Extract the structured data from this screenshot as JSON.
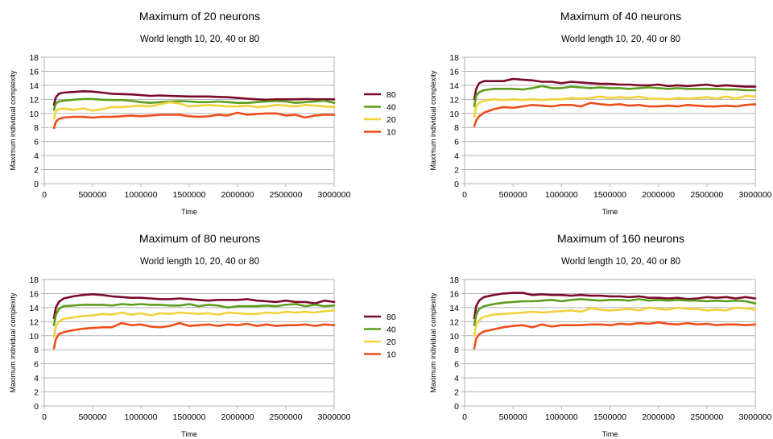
{
  "chart_data": [
    {
      "type": "line",
      "title": "Maximum of 20 neurons",
      "subtitle": "World length 10, 20, 40 or 80",
      "xlabel": "Time",
      "ylabel": "Maximum individual complexity",
      "xlim": [
        0,
        3000000
      ],
      "ylim": [
        0,
        18
      ],
      "xticks": [
        "0",
        "500000",
        "1000000",
        "1500000",
        "2000000",
        "2500000",
        "3000000"
      ],
      "yticks": [
        "0",
        "2",
        "4",
        "6",
        "8",
        "10",
        "12",
        "14",
        "16",
        "18"
      ],
      "grid": true,
      "legend_placement": "right",
      "x": [
        100000,
        120000,
        150000,
        200000,
        300000,
        400000,
        500000,
        600000,
        700000,
        800000,
        900000,
        1000000,
        1100000,
        1200000,
        1300000,
        1400000,
        1500000,
        1600000,
        1700000,
        1800000,
        1900000,
        2000000,
        2100000,
        2200000,
        2300000,
        2400000,
        2500000,
        2600000,
        2700000,
        2800000,
        2900000,
        3000000
      ],
      "series": [
        {
          "name": "80",
          "color": "#7b0a2a",
          "values": [
            11.2,
            12.3,
            12.8,
            12.95,
            13.05,
            13.15,
            13.1,
            12.95,
            12.8,
            12.75,
            12.7,
            12.6,
            12.5,
            12.55,
            12.5,
            12.45,
            12.4,
            12.4,
            12.4,
            12.35,
            12.3,
            12.2,
            12.1,
            12.0,
            11.95,
            12.0,
            12.0,
            12.0,
            12.05,
            12.0,
            12.0,
            12.0
          ]
        },
        {
          "name": "40",
          "color": "#5c9e1f",
          "values": [
            10.5,
            11.4,
            11.7,
            11.8,
            11.95,
            12.05,
            12.05,
            11.95,
            11.9,
            11.9,
            11.8,
            11.6,
            11.5,
            11.6,
            11.7,
            11.75,
            11.7,
            11.6,
            11.6,
            11.7,
            11.6,
            11.5,
            11.5,
            11.6,
            11.7,
            11.75,
            11.7,
            11.5,
            11.6,
            11.7,
            11.8,
            11.5
          ]
        },
        {
          "name": "20",
          "color": "#f2d13a",
          "values": [
            9.3,
            10.3,
            10.6,
            10.7,
            10.5,
            10.7,
            10.4,
            10.6,
            10.9,
            10.9,
            11.0,
            11.1,
            11.0,
            11.3,
            11.6,
            11.4,
            11.0,
            11.1,
            11.2,
            11.1,
            11.0,
            11.0,
            11.1,
            10.9,
            11.0,
            11.2,
            11.1,
            11.0,
            11.2,
            11.1,
            11.0,
            10.9
          ]
        },
        {
          "name": "10",
          "color": "#ee4d1c",
          "values": [
            7.9,
            8.8,
            9.2,
            9.4,
            9.5,
            9.5,
            9.4,
            9.5,
            9.5,
            9.6,
            9.7,
            9.6,
            9.7,
            9.8,
            9.8,
            9.8,
            9.6,
            9.5,
            9.6,
            9.8,
            9.7,
            10.1,
            9.8,
            9.9,
            10.0,
            10.0,
            9.7,
            9.8,
            9.4,
            9.7,
            9.8,
            9.8
          ]
        }
      ]
    },
    {
      "type": "line",
      "title": "Maximum of 40 neurons",
      "subtitle": "World length 10, 20, 40 or 80",
      "xlabel": "Time",
      "ylabel": "Maximum individual complexity",
      "xlim": [
        0,
        3000000
      ],
      "ylim": [
        0,
        18
      ],
      "xticks": [
        "0",
        "500000",
        "1000000",
        "1500000",
        "2000000",
        "2500000",
        "3000000"
      ],
      "yticks": [
        "0",
        "2",
        "4",
        "6",
        "8",
        "10",
        "12",
        "14",
        "16",
        "18"
      ],
      "grid": true,
      "x": [
        100000,
        120000,
        150000,
        200000,
        300000,
        400000,
        500000,
        600000,
        700000,
        800000,
        900000,
        1000000,
        1100000,
        1200000,
        1300000,
        1400000,
        1500000,
        1600000,
        1700000,
        1800000,
        1900000,
        2000000,
        2100000,
        2200000,
        2300000,
        2400000,
        2500000,
        2600000,
        2700000,
        2800000,
        2900000,
        3000000
      ],
      "series": [
        {
          "name": "80",
          "color": "#7b0a2a",
          "values": [
            12.0,
            13.5,
            14.3,
            14.6,
            14.6,
            14.6,
            14.9,
            14.8,
            14.7,
            14.5,
            14.5,
            14.3,
            14.5,
            14.4,
            14.3,
            14.2,
            14.2,
            14.1,
            14.1,
            14.0,
            14.0,
            14.1,
            13.9,
            14.0,
            13.9,
            14.0,
            14.1,
            13.9,
            14.0,
            13.9,
            13.8,
            13.8
          ]
        },
        {
          "name": "40",
          "color": "#5c9e1f",
          "values": [
            11.0,
            12.5,
            13.0,
            13.3,
            13.5,
            13.5,
            13.5,
            13.4,
            13.6,
            13.9,
            13.6,
            13.6,
            13.8,
            13.7,
            13.6,
            13.7,
            13.6,
            13.6,
            13.5,
            13.6,
            13.7,
            13.6,
            13.5,
            13.6,
            13.5,
            13.5,
            13.5,
            13.5,
            13.4,
            13.4,
            13.3,
            13.3
          ]
        },
        {
          "name": "20",
          "color": "#f2d13a",
          "values": [
            9.5,
            11.0,
            11.5,
            11.8,
            12.0,
            11.9,
            12.0,
            11.9,
            12.0,
            11.9,
            12.0,
            12.0,
            12.2,
            12.1,
            12.2,
            12.4,
            12.2,
            12.3,
            12.2,
            12.4,
            12.1,
            12.1,
            12.0,
            12.2,
            12.1,
            12.2,
            12.3,
            12.1,
            12.4,
            12.1,
            12.5,
            12.4
          ]
        },
        {
          "name": "10",
          "color": "#ee4d1c",
          "values": [
            8.2,
            9.0,
            9.6,
            10.1,
            10.6,
            10.9,
            10.8,
            11.0,
            11.2,
            11.1,
            11.0,
            11.2,
            11.2,
            11.0,
            11.5,
            11.3,
            11.2,
            11.3,
            11.1,
            11.2,
            11.0,
            11.0,
            11.1,
            11.0,
            11.2,
            11.1,
            11.0,
            11.0,
            11.1,
            11.0,
            11.2,
            11.3
          ]
        }
      ]
    },
    {
      "type": "line",
      "title": "Maximum of 80 neurons",
      "subtitle": "World length 10, 20, 40 or 80",
      "xlabel": "Time",
      "ylabel": "Maximum individual complexity",
      "xlim": [
        0,
        3000000
      ],
      "ylim": [
        0,
        18
      ],
      "xticks": [
        "0",
        "500000",
        "1000000",
        "1500000",
        "2000000",
        "2500000",
        "3000000"
      ],
      "yticks": [
        "0",
        "2",
        "4",
        "6",
        "8",
        "10",
        "12",
        "14",
        "16",
        "18"
      ],
      "grid": true,
      "legend_placement": "right",
      "x": [
        100000,
        120000,
        150000,
        200000,
        300000,
        400000,
        500000,
        600000,
        700000,
        800000,
        900000,
        1000000,
        1100000,
        1200000,
        1300000,
        1400000,
        1500000,
        1600000,
        1700000,
        1800000,
        1900000,
        2000000,
        2100000,
        2200000,
        2300000,
        2400000,
        2500000,
        2600000,
        2700000,
        2800000,
        2900000,
        3000000
      ],
      "series": [
        {
          "name": "80",
          "color": "#7b0a2a",
          "values": [
            12.5,
            14.0,
            14.8,
            15.3,
            15.6,
            15.8,
            15.9,
            15.8,
            15.6,
            15.5,
            15.4,
            15.4,
            15.3,
            15.2,
            15.2,
            15.3,
            15.2,
            15.1,
            15.0,
            15.1,
            15.1,
            15.1,
            15.2,
            15.0,
            14.9,
            14.8,
            15.0,
            14.8,
            14.8,
            14.6,
            15.0,
            14.8
          ]
        },
        {
          "name": "40",
          "color": "#5c9e1f",
          "values": [
            11.5,
            13.0,
            13.8,
            14.2,
            14.3,
            14.4,
            14.4,
            14.4,
            14.3,
            14.5,
            14.4,
            14.5,
            14.4,
            14.4,
            14.3,
            14.3,
            14.5,
            14.2,
            14.4,
            14.3,
            14.0,
            14.2,
            14.2,
            14.2,
            14.3,
            14.2,
            14.4,
            14.5,
            14.2,
            14.4,
            14.2,
            14.3
          ]
        },
        {
          "name": "20",
          "color": "#f2d13a",
          "values": [
            9.8,
            11.3,
            12.0,
            12.4,
            12.6,
            12.8,
            12.9,
            13.1,
            13.0,
            13.3,
            13.0,
            13.2,
            12.9,
            13.2,
            13.1,
            13.3,
            13.2,
            13.1,
            13.2,
            13.0,
            13.3,
            13.2,
            13.1,
            13.1,
            13.3,
            13.2,
            13.4,
            13.3,
            13.4,
            13.3,
            13.5,
            13.6
          ]
        },
        {
          "name": "10",
          "color": "#ee4d1c",
          "values": [
            8.2,
            9.5,
            10.2,
            10.5,
            10.8,
            11.0,
            11.1,
            11.2,
            11.2,
            11.8,
            11.5,
            11.6,
            11.3,
            11.2,
            11.4,
            11.8,
            11.4,
            11.5,
            11.6,
            11.4,
            11.6,
            11.5,
            11.7,
            11.4,
            11.6,
            11.4,
            11.5,
            11.5,
            11.6,
            11.4,
            11.6,
            11.5
          ]
        }
      ]
    },
    {
      "type": "line",
      "title": "Maximum of 160 neurons",
      "subtitle": "World length 10, 20, 40 or 80",
      "xlabel": "Time",
      "ylabel": "Maximum individual complexity",
      "xlim": [
        0,
        3000000
      ],
      "ylim": [
        0,
        18
      ],
      "xticks": [
        "0",
        "500000",
        "1000000",
        "1500000",
        "2000000",
        "2500000",
        "3000000"
      ],
      "yticks": [
        "0",
        "2",
        "4",
        "6",
        "8",
        "10",
        "12",
        "14",
        "16",
        "18"
      ],
      "grid": true,
      "x": [
        100000,
        120000,
        150000,
        200000,
        300000,
        400000,
        500000,
        600000,
        700000,
        800000,
        900000,
        1000000,
        1100000,
        1200000,
        1300000,
        1400000,
        1500000,
        1600000,
        1700000,
        1800000,
        1900000,
        2000000,
        2100000,
        2200000,
        2300000,
        2400000,
        2500000,
        2600000,
        2700000,
        2800000,
        2900000,
        3000000
      ],
      "series": [
        {
          "name": "80",
          "color": "#7b0a2a",
          "values": [
            12.5,
            14.2,
            15.0,
            15.5,
            15.8,
            16.0,
            16.1,
            16.1,
            15.8,
            15.9,
            15.8,
            15.8,
            15.7,
            15.8,
            15.7,
            15.7,
            15.6,
            15.6,
            15.5,
            15.6,
            15.4,
            15.4,
            15.3,
            15.4,
            15.2,
            15.3,
            15.5,
            15.4,
            15.5,
            15.3,
            15.5,
            15.3
          ]
        },
        {
          "name": "40",
          "color": "#5c9e1f",
          "values": [
            11.5,
            13.0,
            13.8,
            14.2,
            14.5,
            14.7,
            14.8,
            14.9,
            14.9,
            15.0,
            15.1,
            14.9,
            15.1,
            15.2,
            15.1,
            15.0,
            15.1,
            15.1,
            15.0,
            15.2,
            15.0,
            15.1,
            15.0,
            15.1,
            15.0,
            15.0,
            14.9,
            15.0,
            14.9,
            15.0,
            14.9,
            14.6
          ]
        },
        {
          "name": "20",
          "color": "#f2d13a",
          "values": [
            10.0,
            11.5,
            12.2,
            12.7,
            13.0,
            13.1,
            13.2,
            13.3,
            13.4,
            13.3,
            13.4,
            13.5,
            13.6,
            13.4,
            13.9,
            13.7,
            13.6,
            13.7,
            13.8,
            13.6,
            14.0,
            13.8,
            13.7,
            14.0,
            13.8,
            13.8,
            13.6,
            13.7,
            13.6,
            14.0,
            13.9,
            13.7
          ]
        },
        {
          "name": "10",
          "color": "#ee4d1c",
          "values": [
            8.2,
            9.6,
            10.2,
            10.6,
            10.9,
            11.2,
            11.4,
            11.5,
            11.2,
            11.6,
            11.3,
            11.5,
            11.5,
            11.5,
            11.6,
            11.6,
            11.5,
            11.7,
            11.6,
            11.8,
            11.7,
            11.9,
            11.7,
            11.6,
            11.8,
            11.6,
            11.7,
            11.5,
            11.6,
            11.6,
            11.5,
            11.6
          ]
        }
      ]
    }
  ]
}
